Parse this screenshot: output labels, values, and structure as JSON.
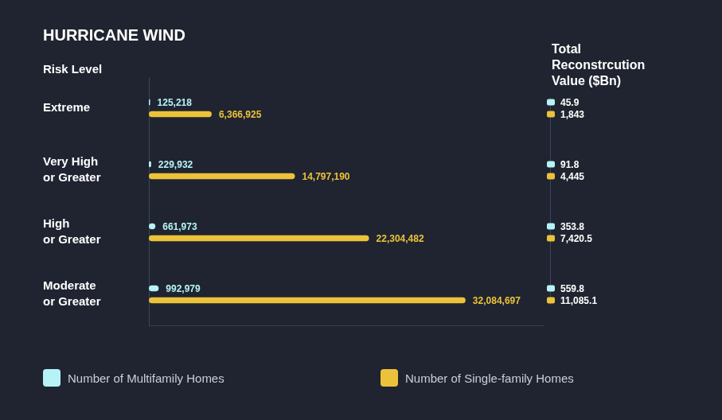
{
  "chart_data": {
    "type": "bar",
    "orientation": "horizontal",
    "title": "HURRICANE WIND",
    "y_label": "Risk Level",
    "reconstruction_title": "Total Reconstrcution Value ($Bn)",
    "categories": [
      "Extreme",
      "Very High or Greater",
      "High or Greater",
      "Moderate or Greater"
    ],
    "series": [
      {
        "name": "Number of Multifamily Homes",
        "color": "#b6f3f6",
        "values": [
          125218,
          229932,
          661973,
          992979
        ],
        "value_labels": [
          "125,218",
          "229,932",
          "661,973",
          "992,979"
        ],
        "reconstruction_values": [
          45.9,
          91.8,
          353.8,
          559.8
        ]
      },
      {
        "name": "Number of Single-family Homes",
        "color": "#ecc23a",
        "values": [
          6366925,
          14797190,
          22304482,
          32084697
        ],
        "value_labels": [
          "6,366,925",
          "14,797,190",
          "22,304,482",
          "32,084,697"
        ],
        "reconstruction_values": [
          1843,
          4445,
          7420.5,
          11085.1
        ],
        "reconstruction_labels": [
          "1,843",
          "4,445",
          "7,420.5",
          "11,085.1"
        ]
      }
    ],
    "xlim": [
      0,
      40000000
    ],
    "grid": false,
    "legend": "bottom",
    "data_labels": true,
    "tick_labels": "y"
  }
}
